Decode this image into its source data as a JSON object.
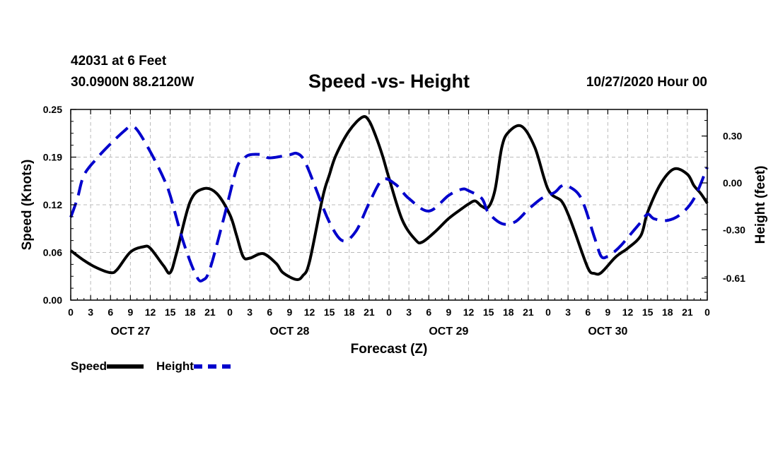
{
  "header": {
    "station": "42031 at 6 Feet",
    "coords": "30.0900N 88.2120W",
    "title": "Speed -vs- Height",
    "run": "10/27/2020 Hour 00"
  },
  "legend": {
    "speed_label": "Speed",
    "height_label": "Height"
  },
  "colors": {
    "speed": "#000000",
    "height": "#0000cc",
    "grid": "#bbbbbb"
  },
  "chart_data": {
    "type": "line",
    "title": "Speed -vs- Height",
    "xlabel": "Forecast (Z)",
    "ylabel": "Speed (Knots)",
    "y2label": "Height (feet)",
    "xlim": [
      0,
      96
    ],
    "ylim": [
      0,
      0.25
    ],
    "y2lim": [
      -0.75,
      0.47
    ],
    "x_tick_step": 3,
    "x_tick_labels": [
      "0",
      "3",
      "6",
      "9",
      "12",
      "15",
      "18",
      "21",
      "0",
      "3",
      "6",
      "9",
      "12",
      "15",
      "18",
      "21",
      "0",
      "3",
      "6",
      "9",
      "12",
      "15",
      "18",
      "21",
      "0",
      "3",
      "6",
      "9",
      "12",
      "15",
      "18",
      "21",
      "0"
    ],
    "y_ticks": [
      "0.00",
      "0.06",
      "0.12",
      "0.19",
      "0.25"
    ],
    "y2_ticks": [
      {
        "value": 0.3,
        "label": "0.30"
      },
      {
        "value": 0.0,
        "label": "0.00"
      },
      {
        "value": -0.3,
        "label": "-0.30"
      },
      {
        "value": -0.61,
        "label": "-0.61"
      }
    ],
    "date_labels": [
      {
        "x": 9,
        "label": "OCT 27"
      },
      {
        "x": 33,
        "label": "OCT 28"
      },
      {
        "x": 57,
        "label": "OCT 29"
      },
      {
        "x": 81,
        "label": "OCT 30"
      }
    ],
    "series": [
      {
        "name": "Speed",
        "axis": "left",
        "style": "solid",
        "x": [
          0,
          2,
          4,
          6,
          7,
          9,
          11,
          12,
          14,
          15,
          16,
          18,
          20,
          22,
          24,
          25,
          26,
          27,
          29,
          31,
          32,
          34,
          35,
          36,
          38,
          39,
          40,
          42,
          44,
          45,
          46,
          47,
          48,
          50,
          52,
          53,
          55,
          57,
          59,
          60,
          61,
          62,
          63,
          64,
          65,
          66,
          68,
          70,
          72,
          74,
          75,
          76,
          78,
          79,
          80,
          82,
          83,
          84,
          86,
          87,
          89,
          91,
          93,
          94,
          95,
          96
        ],
        "y": [
          0.065,
          0.052,
          0.042,
          0.036,
          0.04,
          0.063,
          0.07,
          0.068,
          0.045,
          0.036,
          0.063,
          0.129,
          0.146,
          0.14,
          0.112,
          0.085,
          0.057,
          0.055,
          0.061,
          0.048,
          0.036,
          0.027,
          0.032,
          0.05,
          0.135,
          0.164,
          0.19,
          0.222,
          0.24,
          0.235,
          0.215,
          0.19,
          0.16,
          0.105,
          0.079,
          0.076,
          0.09,
          0.107,
          0.12,
          0.126,
          0.13,
          0.123,
          0.122,
          0.145,
          0.2,
          0.22,
          0.228,
          0.2,
          0.145,
          0.13,
          0.113,
          0.09,
          0.042,
          0.035,
          0.036,
          0.055,
          0.062,
          0.068,
          0.085,
          0.115,
          0.153,
          0.172,
          0.165,
          0.15,
          0.14,
          0.127
        ]
      },
      {
        "name": "Height",
        "axis": "right",
        "style": "dashed",
        "x": [
          0,
          1,
          2,
          4,
          6,
          8,
          9,
          10,
          12,
          14,
          15,
          17,
          19,
          20,
          21,
          23,
          25,
          26,
          27,
          29,
          30,
          33,
          34,
          35,
          36,
          37,
          39,
          41,
          43,
          45,
          47,
          49,
          51,
          54,
          57,
          59,
          60,
          62,
          63,
          65,
          67,
          69,
          71,
          73,
          74,
          75,
          77,
          79,
          80,
          81,
          82,
          83,
          84,
          86,
          87,
          88,
          90,
          92,
          94,
          96
        ],
        "y": [
          -0.22,
          -0.1,
          0.05,
          0.16,
          0.25,
          0.33,
          0.36,
          0.34,
          0.2,
          0.03,
          -0.08,
          -0.38,
          -0.6,
          -0.62,
          -0.55,
          -0.24,
          0.09,
          0.15,
          0.18,
          0.18,
          0.16,
          0.18,
          0.19,
          0.16,
          0.07,
          -0.04,
          -0.25,
          -0.37,
          -0.31,
          -0.13,
          0.02,
          -0.01,
          -0.1,
          -0.18,
          -0.08,
          -0.04,
          -0.05,
          -0.1,
          -0.19,
          -0.26,
          -0.25,
          -0.17,
          -0.1,
          -0.06,
          -0.02,
          -0.02,
          -0.1,
          -0.35,
          -0.47,
          -0.47,
          -0.44,
          -0.4,
          -0.35,
          -0.25,
          -0.2,
          -0.23,
          -0.24,
          -0.2,
          -0.1,
          0.1
        ]
      }
    ]
  }
}
